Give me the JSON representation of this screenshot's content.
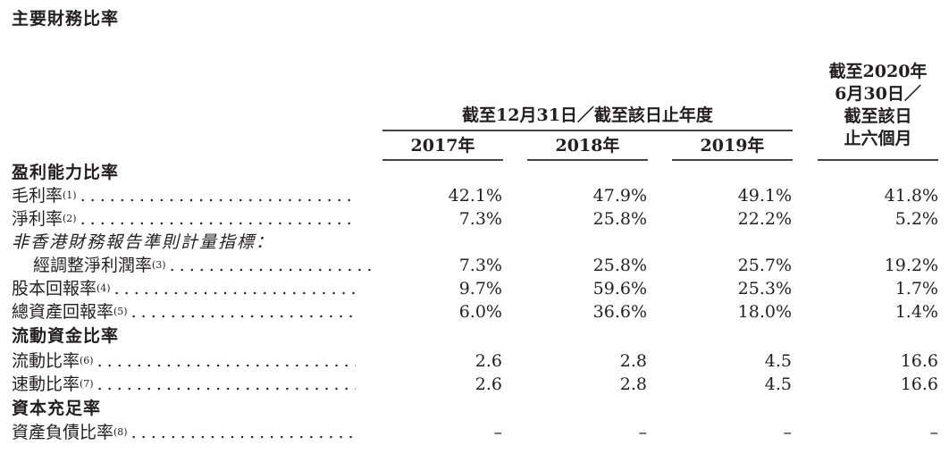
{
  "title": "主要財務比率",
  "header": {
    "group": "截至12月31日／截至該日止年度",
    "years": [
      "2017年",
      "2018年",
      "2019年"
    ],
    "interim": [
      "截至2020年",
      "6月30日／",
      "截至該日",
      "止六個月"
    ]
  },
  "rows": [
    {
      "type": "section",
      "label": "盈利能力比率"
    },
    {
      "type": "data",
      "label": "毛利率",
      "note": "(1)",
      "values": [
        "42.1%",
        "47.9%",
        "49.1%",
        "41.8%"
      ]
    },
    {
      "type": "data",
      "label": "淨利率",
      "note": "(2)",
      "values": [
        "7.3%",
        "25.8%",
        "22.2%",
        "5.2%"
      ]
    },
    {
      "type": "italic",
      "label": "非香港財務報告準則計量指標："
    },
    {
      "type": "indent",
      "label": "經調整淨利潤率",
      "note": "(3)",
      "values": [
        "7.3%",
        "25.8%",
        "25.7%",
        "19.2%"
      ]
    },
    {
      "type": "data",
      "label": "股本回報率",
      "note": "(4)",
      "values": [
        "9.7%",
        "59.6%",
        "25.3%",
        "1.7%"
      ]
    },
    {
      "type": "data",
      "label": "總資產回報率",
      "note": "(5)",
      "values": [
        "6.0%",
        "36.6%",
        "18.0%",
        "1.4%"
      ]
    },
    {
      "type": "section",
      "label": "流動資金比率"
    },
    {
      "type": "data",
      "label": "流動比率",
      "note": "(6)",
      "values": [
        "2.6",
        "2.8",
        "4.5",
        "16.6"
      ]
    },
    {
      "type": "data",
      "label": "速動比率",
      "note": "(7)",
      "values": [
        "2.6",
        "2.8",
        "4.5",
        "16.6"
      ]
    },
    {
      "type": "section",
      "label": "資本充足率"
    },
    {
      "type": "data",
      "label": "資產負債比率",
      "note": "(8)",
      "values": [
        "–",
        "–",
        "–",
        "–"
      ]
    }
  ]
}
